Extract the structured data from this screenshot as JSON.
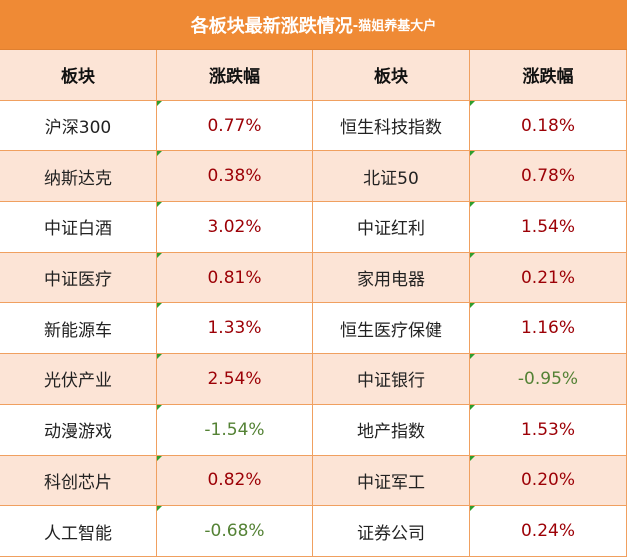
{
  "header": {
    "title": "各板块最新涨跌情况",
    "subtitle": "-猫姐养基大户"
  },
  "table": {
    "columns": [
      "板块",
      "涨跌幅",
      "板块",
      "涨跌幅"
    ],
    "rows": [
      [
        "沪深300",
        "0.77%",
        "恒生科技指数",
        "0.18%"
      ],
      [
        "纳斯达克",
        "0.38%",
        "北证50",
        "0.78%"
      ],
      [
        "中证白酒",
        "3.02%",
        "中证红利",
        "1.54%"
      ],
      [
        "中证医疗",
        "0.81%",
        "家用电器",
        "0.21%"
      ],
      [
        "新能源车",
        "1.33%",
        "恒生医疗保健",
        "1.16%"
      ],
      [
        "光伏产业",
        "2.54%",
        "中证银行",
        "-0.95%"
      ],
      [
        "动漫游戏",
        "-1.54%",
        "地产指数",
        "1.53%"
      ],
      [
        "科创芯片",
        "0.82%",
        "中证军工",
        "0.20%"
      ],
      [
        "人工智能",
        "-0.68%",
        "证券公司",
        "0.24%"
      ]
    ],
    "positive_color": "#9c0006",
    "negative_color": "#548235"
  }
}
